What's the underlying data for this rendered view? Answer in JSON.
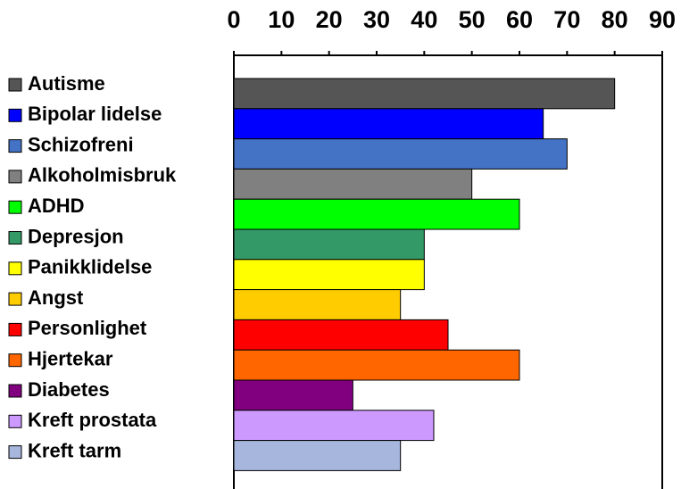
{
  "chart_data": {
    "type": "bar",
    "orientation": "horizontal",
    "categories": [
      "Autisme",
      "Bipolar lidelse",
      "Schizofreni",
      "Alkoholmisbruk",
      "ADHD",
      "Depresjon",
      "Panikklidelse",
      "Angst",
      "Personlighet",
      "Hjertekar",
      "Diabetes",
      "Kreft prostata",
      "Kreft tarm"
    ],
    "values": [
      80,
      65,
      70,
      50,
      60,
      40,
      40,
      35,
      45,
      60,
      25,
      42,
      35
    ],
    "colors": [
      "#555555",
      "#0000ff",
      "#4472c4",
      "#808080",
      "#00ff00",
      "#339966",
      "#ffff00",
      "#ffcc00",
      "#ff0000",
      "#ff6600",
      "#800080",
      "#cc99ff",
      "#a6b6dc"
    ],
    "xlim": [
      0,
      90
    ],
    "xticks": [
      0,
      10,
      20,
      30,
      40,
      50,
      60,
      70,
      80,
      90
    ],
    "grid": false,
    "legend": "left"
  }
}
